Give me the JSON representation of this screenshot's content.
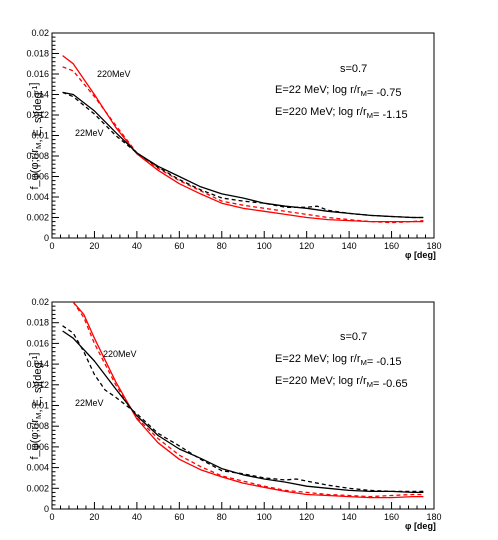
{
  "chart_data": [
    {
      "type": "line",
      "xlabel": "φ [deg]",
      "ylabel": "f_φ(φ;r/r_M, E, s)[deg⁻¹]",
      "xlim": [
        0,
        180
      ],
      "ylim": [
        0,
        0.02
      ],
      "xticks": [
        "0",
        "20",
        "40",
        "60",
        "80",
        "100",
        "120",
        "140",
        "160",
        "180"
      ],
      "yticks": [
        "0",
        "0.002",
        "0.004",
        "0.006",
        "0.008",
        "0.01",
        "0.012",
        "0.014",
        "0.016",
        "0.018",
        "0.02"
      ],
      "grid": false,
      "annotations": [
        "s=0.7",
        "E=22 MeV; log r/r_M= -0.75",
        "E=220 MeV; log r/r_M= -1.15"
      ],
      "curve_labels": [
        "220MeV",
        "22MeV"
      ],
      "series": [
        {
          "color": "#ff0000",
          "style": "solid",
          "x": [
            5,
            10,
            20,
            30,
            40,
            50,
            60,
            70,
            80,
            90,
            100,
            110,
            120,
            130,
            140,
            150,
            160,
            170,
            175
          ],
          "y": [
            0.0178,
            0.017,
            0.014,
            0.0108,
            0.0082,
            0.0066,
            0.0053,
            0.0043,
            0.0034,
            0.0029,
            0.0026,
            0.0023,
            0.002,
            0.0018,
            0.0017,
            0.0016,
            0.0016,
            0.0016,
            0.0016
          ]
        },
        {
          "color": "#ff0000",
          "style": "dashed",
          "x": [
            5,
            10,
            20,
            30,
            40,
            50,
            60,
            70,
            80,
            90,
            100,
            110,
            120,
            130,
            140,
            150,
            160,
            170,
            175
          ],
          "y": [
            0.0167,
            0.0163,
            0.0138,
            0.011,
            0.0083,
            0.0068,
            0.0056,
            0.0046,
            0.0036,
            0.0032,
            0.0029,
            0.0026,
            0.0023,
            0.002,
            0.0018,
            0.0016,
            0.0015,
            0.0016,
            0.0017
          ]
        },
        {
          "color": "#000000",
          "style": "solid",
          "x": [
            5,
            10,
            20,
            30,
            40,
            50,
            60,
            70,
            80,
            90,
            100,
            110,
            120,
            130,
            140,
            150,
            160,
            170,
            175
          ],
          "y": [
            0.0142,
            0.014,
            0.0124,
            0.0103,
            0.0083,
            0.007,
            0.006,
            0.005,
            0.0043,
            0.0039,
            0.0034,
            0.0031,
            0.0029,
            0.0026,
            0.0024,
            0.0022,
            0.0021,
            0.002,
            0.002
          ]
        },
        {
          "color": "#000000",
          "style": "dashed",
          "x": [
            5,
            10,
            20,
            30,
            40,
            50,
            60,
            70,
            80,
            90,
            100,
            110,
            120,
            125,
            130,
            140,
            150,
            160,
            170,
            175
          ],
          "y": [
            0.0142,
            0.0138,
            0.0121,
            0.01,
            0.0083,
            0.0069,
            0.0057,
            0.0047,
            0.0039,
            0.0036,
            0.0034,
            0.003,
            0.003,
            0.0031,
            0.0027,
            0.0024,
            0.0022,
            0.0021,
            0.002,
            0.002
          ]
        }
      ]
    },
    {
      "type": "line",
      "xlabel": "φ [deg]",
      "ylabel": "f_φ(φ;r/r_M, E, s)[deg⁻¹]",
      "xlim": [
        0,
        180
      ],
      "ylim": [
        0,
        0.02
      ],
      "xticks": [
        "0",
        "20",
        "40",
        "60",
        "80",
        "100",
        "120",
        "140",
        "160",
        "180"
      ],
      "yticks": [
        "0",
        "0.002",
        "0.004",
        "0.006",
        "0.008",
        "0.01",
        "0.012",
        "0.014",
        "0.016",
        "0.018",
        "0.02"
      ],
      "grid": false,
      "annotations": [
        "s=0.7",
        "E=22 MeV; log r/r_M= -0.15",
        "E=220 MeV; log r/r_M= -0.65"
      ],
      "curve_labels": [
        "220MeV",
        "22MeV"
      ],
      "series": [
        {
          "color": "#ff0000",
          "style": "solid",
          "x": [
            10,
            15,
            20,
            30,
            40,
            50,
            60,
            70,
            80,
            90,
            100,
            110,
            120,
            130,
            140,
            150,
            160,
            170,
            175
          ],
          "y": [
            0.02,
            0.0188,
            0.0165,
            0.0123,
            0.0087,
            0.0064,
            0.0048,
            0.0038,
            0.0031,
            0.0025,
            0.0021,
            0.0017,
            0.0014,
            0.0013,
            0.0012,
            0.0011,
            0.0011,
            0.0012,
            0.0012
          ]
        },
        {
          "color": "#ff0000",
          "style": "dashed",
          "x": [
            10,
            15,
            20,
            30,
            40,
            50,
            60,
            70,
            80,
            90,
            100,
            110,
            120,
            130,
            140,
            150,
            160,
            170,
            175
          ],
          "y": [
            0.02,
            0.0185,
            0.016,
            0.012,
            0.0088,
            0.0068,
            0.0052,
            0.0041,
            0.0032,
            0.0027,
            0.0022,
            0.0018,
            0.0016,
            0.0014,
            0.0013,
            0.0012,
            0.0013,
            0.0014,
            0.0014
          ]
        },
        {
          "color": "#000000",
          "style": "solid",
          "x": [
            5,
            10,
            20,
            30,
            40,
            50,
            60,
            70,
            80,
            90,
            100,
            110,
            120,
            130,
            140,
            150,
            160,
            170,
            175
          ],
          "y": [
            0.0172,
            0.0165,
            0.0143,
            0.0116,
            0.009,
            0.0071,
            0.0058,
            0.0049,
            0.0039,
            0.0033,
            0.0029,
            0.0026,
            0.0022,
            0.002,
            0.0018,
            0.0017,
            0.0017,
            0.0016,
            0.0016
          ]
        },
        {
          "color": "#000000",
          "style": "dashed",
          "x": [
            5,
            10,
            15,
            20,
            25,
            30,
            40,
            50,
            60,
            70,
            80,
            90,
            100,
            110,
            115,
            120,
            130,
            140,
            150,
            160,
            170,
            175
          ],
          "y": [
            0.0177,
            0.017,
            0.0152,
            0.013,
            0.0115,
            0.0108,
            0.0092,
            0.0073,
            0.0061,
            0.0048,
            0.0037,
            0.0034,
            0.003,
            0.0028,
            0.0029,
            0.0027,
            0.0023,
            0.002,
            0.0018,
            0.0017,
            0.0017,
            0.0017
          ]
        }
      ]
    }
  ]
}
